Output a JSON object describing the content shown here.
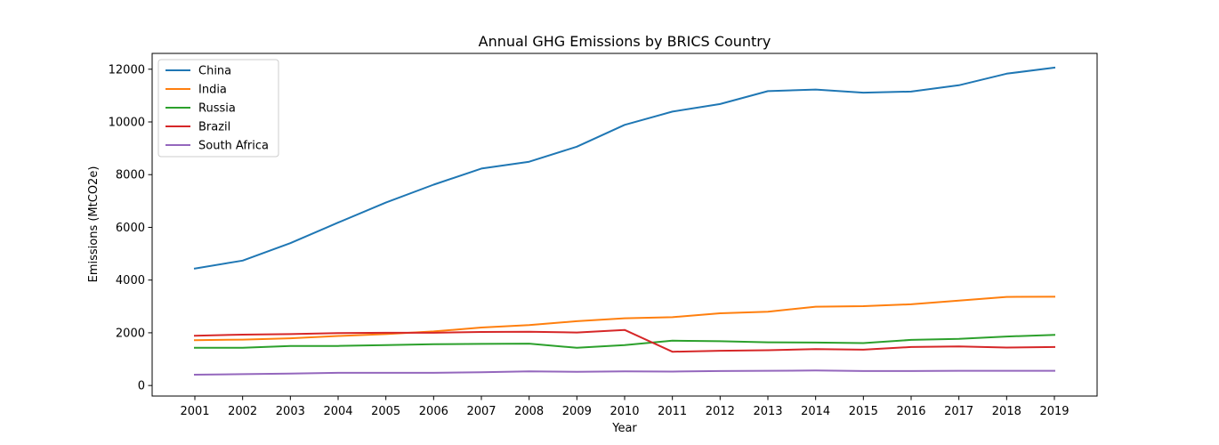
{
  "chart_data": {
    "type": "line",
    "title": "Annual GHG Emissions by BRICS Country",
    "xlabel": "Year",
    "ylabel": "Emissions (MtCO2e)",
    "x": [
      2001,
      2002,
      2003,
      2004,
      2005,
      2006,
      2007,
      2008,
      2009,
      2010,
      2011,
      2012,
      2013,
      2014,
      2015,
      2016,
      2017,
      2018,
      2019
    ],
    "ylim": [
      -400,
      12600
    ],
    "yticks": [
      0,
      2000,
      4000,
      6000,
      8000,
      10000,
      12000
    ],
    "grid": false,
    "legend_position": "top-left",
    "series": [
      {
        "name": "China",
        "color": "#1f77b4",
        "values": [
          4440,
          4740,
          5400,
          6180,
          6940,
          7620,
          8230,
          8490,
          9060,
          9890,
          10390,
          10680,
          11170,
          11230,
          11110,
          11150,
          11390,
          11830,
          12060
        ]
      },
      {
        "name": "India",
        "color": "#ff7f0e",
        "values": [
          1720,
          1740,
          1790,
          1880,
          1950,
          2050,
          2200,
          2290,
          2440,
          2550,
          2590,
          2740,
          2800,
          2990,
          3010,
          3080,
          3220,
          3360,
          3370
        ]
      },
      {
        "name": "Russia",
        "color": "#2ca02c",
        "values": [
          1430,
          1430,
          1500,
          1500,
          1530,
          1570,
          1580,
          1590,
          1430,
          1530,
          1700,
          1680,
          1640,
          1630,
          1610,
          1730,
          1770,
          1860,
          1920
        ]
      },
      {
        "name": "Brazil",
        "color": "#d62728",
        "values": [
          1890,
          1930,
          1950,
          1990,
          2000,
          2000,
          2030,
          2040,
          2010,
          2110,
          1280,
          1320,
          1340,
          1380,
          1360,
          1460,
          1480,
          1440,
          1460
        ]
      },
      {
        "name": "South Africa",
        "color": "#9467bd",
        "values": [
          410,
          430,
          450,
          480,
          480,
          480,
          500,
          540,
          520,
          540,
          530,
          550,
          560,
          570,
          550,
          550,
          560,
          560,
          560
        ]
      }
    ]
  }
}
